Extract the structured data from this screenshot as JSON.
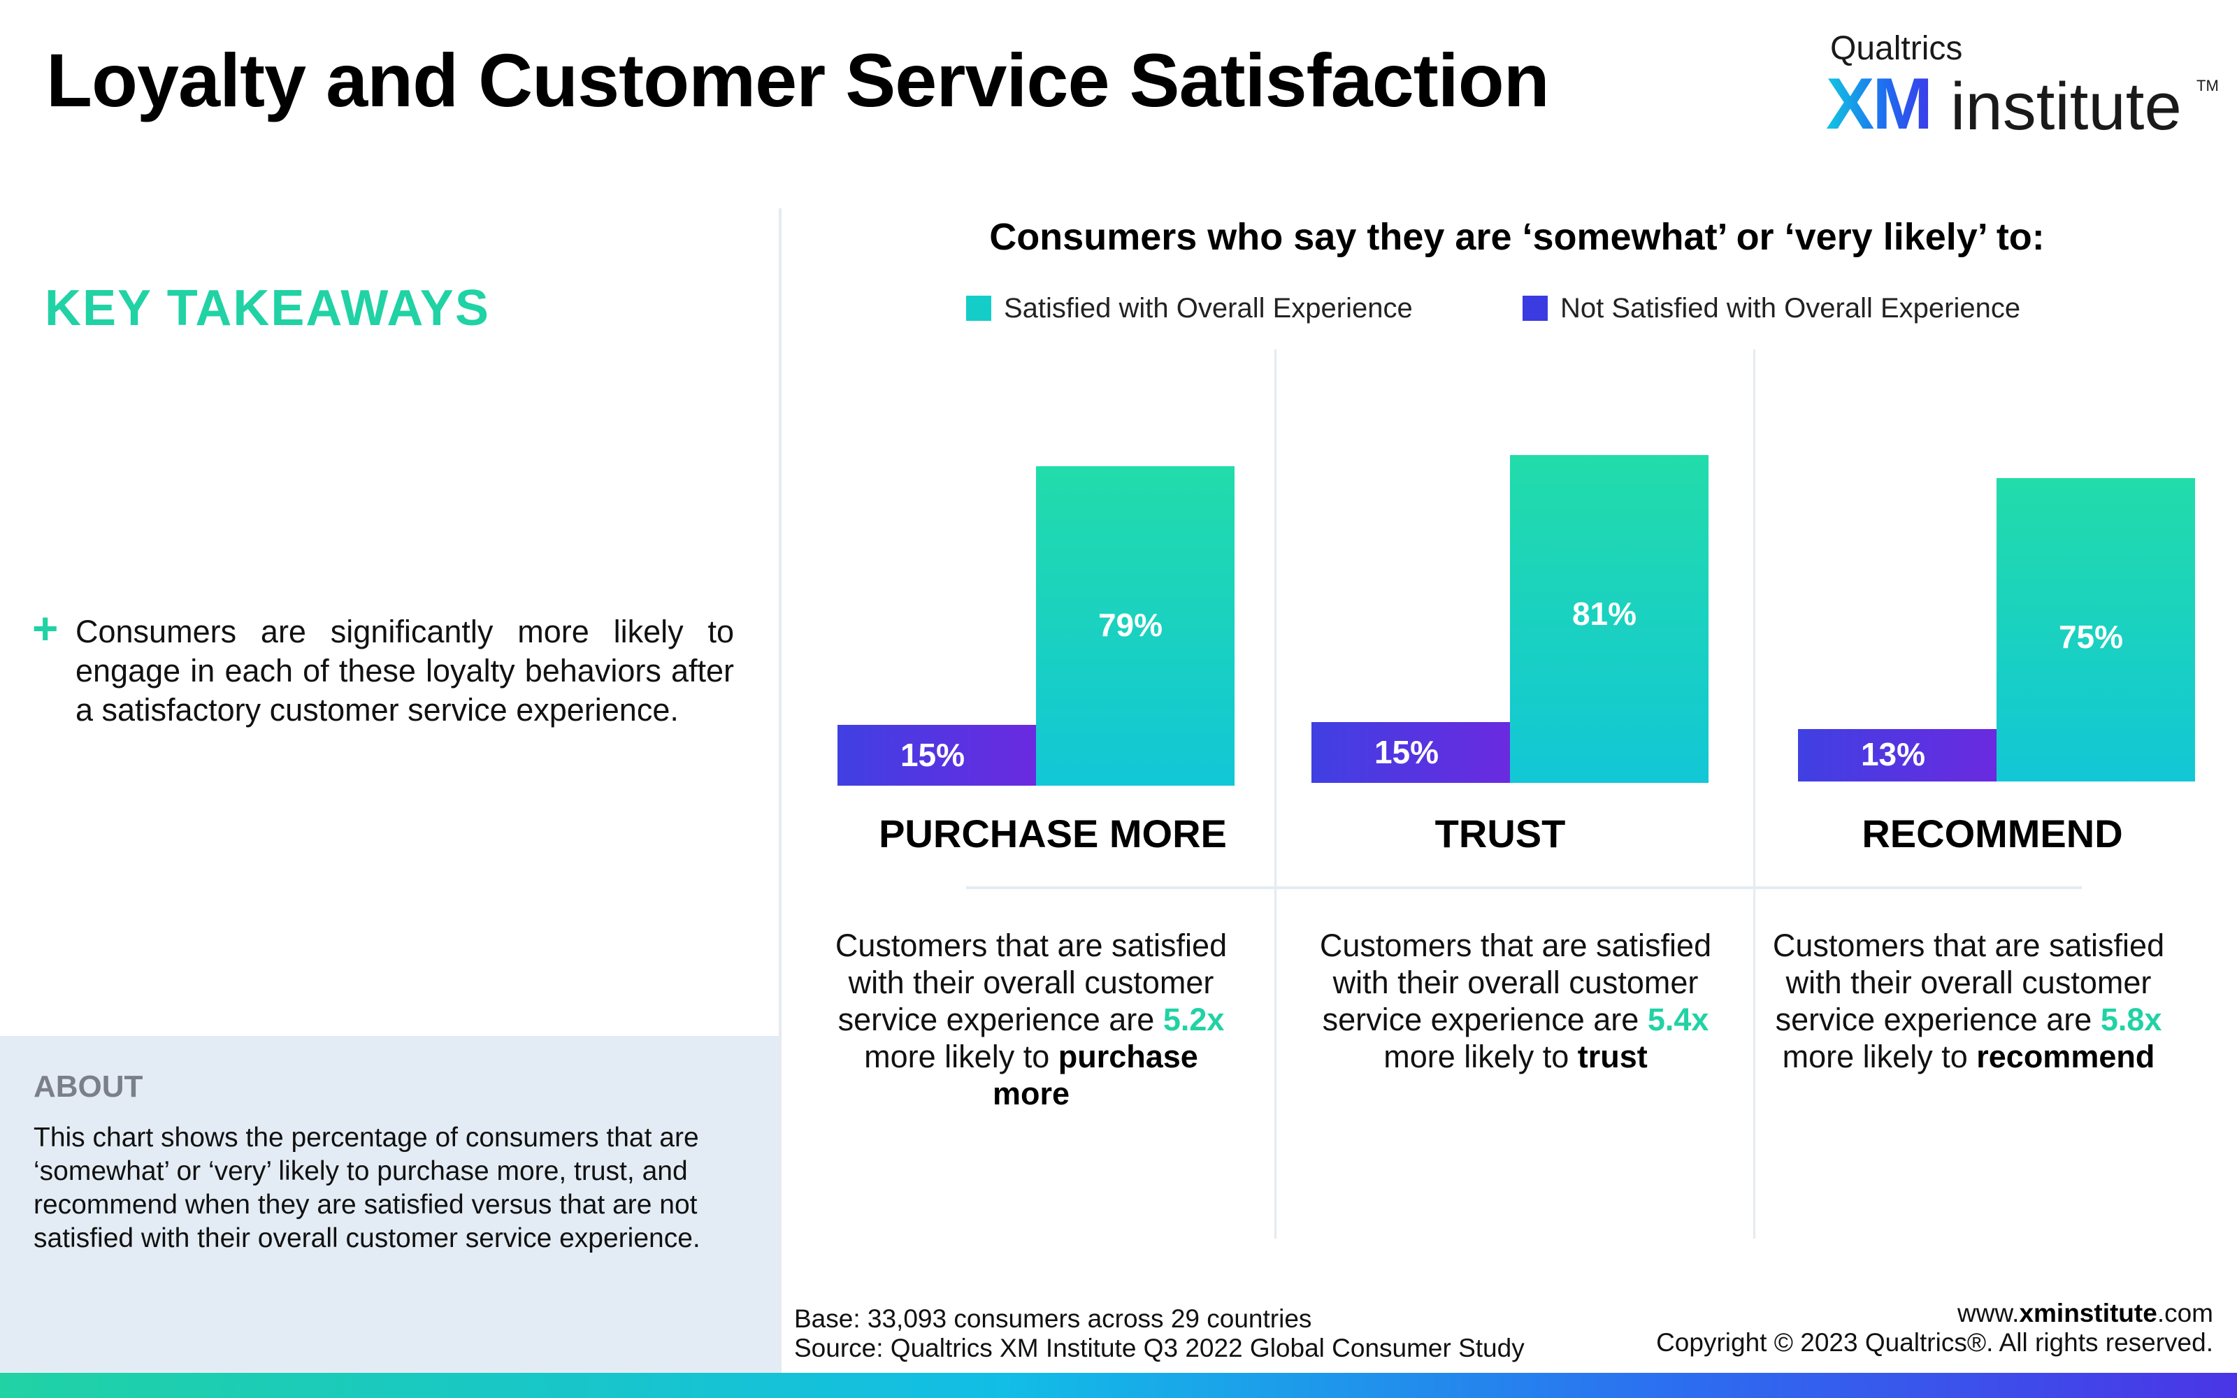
{
  "header": {
    "title": "Loyalty and Customer Service Satisfaction",
    "logo_top": "Qualtrics",
    "logo_xm": "XM",
    "logo_institute": "institute",
    "logo_tm": "TM"
  },
  "left_panel": {
    "key_takeaways_heading": "KEY TAKEAWAYS",
    "plus_icon": "+",
    "takeaway": "Consumers are significantly more likely to engage in each of these loyalty behaviors after a satisfactory customer service experience.",
    "about_heading": "ABOUT",
    "about_text": "This chart shows the percentage of consumers that are ‘somewhat’ or ‘very’ likely to purchase more, trust, and recommend when they are satisfied versus that are not satisfied with their overall customer service experience."
  },
  "colors": {
    "accent_green": "#20d2a4",
    "satisfied_start": "#12c7d6",
    "satisfied_end": "#22dcaa",
    "not_satisfied_start": "#4040e2",
    "not_satisfied_end": "#6a2ae0",
    "about_bg": "#e3ecf4"
  },
  "chart_data": {
    "type": "bar",
    "title": "Consumers who say they are ‘somewhat’ or ‘very likely’ to:",
    "categories": [
      "PURCHASE MORE",
      "TRUST",
      "RECOMMEND"
    ],
    "series": [
      {
        "name": "Not Satisfied with Overall Experience",
        "values": [
          15,
          15,
          13
        ],
        "labels": [
          "15%",
          "15%",
          "13%"
        ]
      },
      {
        "name": "Satisfied with Overall Experience",
        "values": [
          79,
          81,
          75
        ],
        "labels": [
          "79%",
          "81%",
          "75%"
        ]
      }
    ],
    "ylim": [
      0,
      100
    ],
    "legend": [
      "Satisfied with Overall Experience",
      "Not Satisfied with Overall Experience"
    ],
    "legend_position": "top"
  },
  "descriptions": [
    {
      "pre": "Customers that are satisfied with their overall customer service experience are ",
      "multiplier": "5.2x",
      "mid": " more likely to ",
      "behavior": "purchase more"
    },
    {
      "pre": "Customers that are satisfied with their overall customer service experience are ",
      "multiplier": "5.4x",
      "mid": " more likely to ",
      "behavior": "trust"
    },
    {
      "pre": "Customers that are satisfied with their overall customer service experience are ",
      "multiplier": "5.8x",
      "mid": " more likely to ",
      "behavior": "recommend"
    }
  ],
  "footer": {
    "base_line": "Base: 33,093 consumers across 29 countries",
    "source_line": "Source: Qualtrics XM Institute Q3 2022 Global Consumer Study",
    "site_prefix": "www.",
    "site_bold": "xminstitute",
    "site_suffix": ".com",
    "copyright": "Copyright © 2023 Qualtrics®. All rights reserved."
  }
}
